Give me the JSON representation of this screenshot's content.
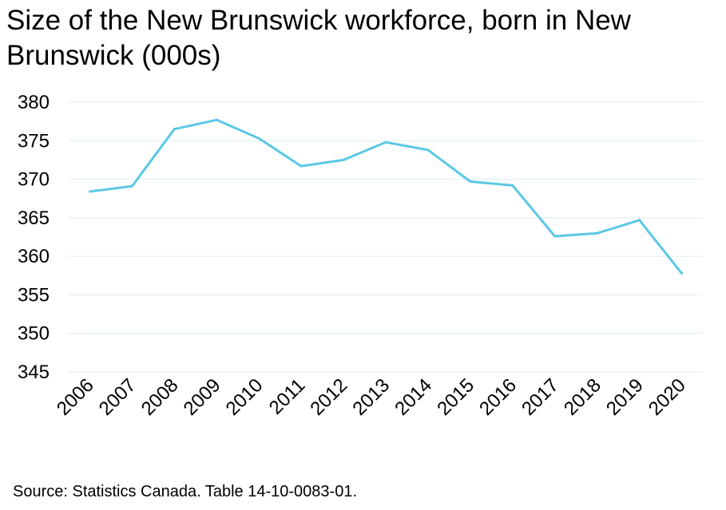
{
  "chart_data": {
    "type": "line",
    "title": "Size of the New Brunswick workforce, born in New Brunswick (000s)",
    "xlabel": "",
    "ylabel": "",
    "categories": [
      "2006",
      "2007",
      "2008",
      "2009",
      "2010",
      "2011",
      "2012",
      "2013",
      "2014",
      "2015",
      "2016",
      "2017",
      "2018",
      "2019",
      "2020"
    ],
    "series": [
      {
        "values": [
          368.4,
          369.1,
          376.5,
          377.7,
          375.3,
          371.7,
          372.5,
          374.8,
          373.8,
          369.7,
          369.2,
          362.6,
          363.0,
          364.7,
          357.8
        ]
      }
    ],
    "ylim": [
      345,
      380
    ],
    "yticks": [
      345,
      350,
      355,
      360,
      365,
      370,
      375,
      380
    ],
    "grid": true,
    "legend": "none",
    "colors": {
      "line": "#5bc8e6",
      "grid": "#d9eef4"
    }
  },
  "source": "Source: Statistics Canada. Table 14-10-0083-01."
}
